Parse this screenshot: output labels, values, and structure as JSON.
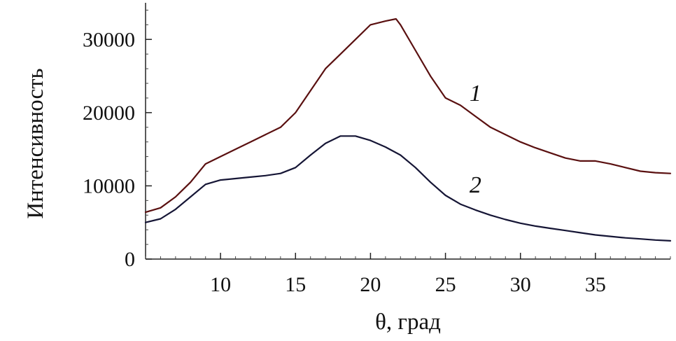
{
  "chart_data": {
    "type": "line",
    "xlabel": "θ, град",
    "ylabel": "Интенсивность",
    "xlim": [
      5,
      40
    ],
    "ylim": [
      0,
      35000
    ],
    "xticks": [
      10,
      15,
      20,
      25,
      30,
      35
    ],
    "yticks": [
      0,
      10000,
      20000,
      30000
    ],
    "grid": false,
    "legend": "inline labels",
    "series": [
      {
        "name": "1",
        "color": "#5a1010",
        "points": [
          [
            5,
            6400
          ],
          [
            6,
            7000
          ],
          [
            7,
            8500
          ],
          [
            8,
            10500
          ],
          [
            9,
            13000
          ],
          [
            10,
            14000
          ],
          [
            11,
            15000
          ],
          [
            12,
            16000
          ],
          [
            13,
            17000
          ],
          [
            14,
            18000
          ],
          [
            15,
            20000
          ],
          [
            16,
            23000
          ],
          [
            17,
            26000
          ],
          [
            18,
            28000
          ],
          [
            19,
            30000
          ],
          [
            20,
            32000
          ],
          [
            21,
            32500
          ],
          [
            21.7,
            32800
          ],
          [
            22,
            32000
          ],
          [
            23,
            28500
          ],
          [
            24,
            25000
          ],
          [
            25,
            22000
          ],
          [
            26,
            21000
          ],
          [
            27,
            19500
          ],
          [
            28,
            18000
          ],
          [
            29,
            17000
          ],
          [
            30,
            16000
          ],
          [
            31,
            15200
          ],
          [
            32,
            14500
          ],
          [
            33,
            13800
          ],
          [
            34,
            13400
          ],
          [
            35,
            13400
          ],
          [
            36,
            13000
          ],
          [
            37,
            12500
          ],
          [
            38,
            12000
          ],
          [
            39,
            11800
          ],
          [
            40,
            11700
          ]
        ]
      },
      {
        "name": "2",
        "color": "#151535",
        "points": [
          [
            5,
            5000
          ],
          [
            6,
            5500
          ],
          [
            7,
            6800
          ],
          [
            8,
            8500
          ],
          [
            9,
            10200
          ],
          [
            10,
            10800
          ],
          [
            11,
            11000
          ],
          [
            12,
            11200
          ],
          [
            13,
            11400
          ],
          [
            14,
            11700
          ],
          [
            15,
            12500
          ],
          [
            16,
            14200
          ],
          [
            17,
            15800
          ],
          [
            18,
            16800
          ],
          [
            19,
            16800
          ],
          [
            20,
            16200
          ],
          [
            21,
            15300
          ],
          [
            22,
            14200
          ],
          [
            23,
            12500
          ],
          [
            24,
            10500
          ],
          [
            25,
            8700
          ],
          [
            26,
            7500
          ],
          [
            27,
            6700
          ],
          [
            28,
            6000
          ],
          [
            29,
            5400
          ],
          [
            30,
            4900
          ],
          [
            31,
            4500
          ],
          [
            32,
            4200
          ],
          [
            33,
            3900
          ],
          [
            34,
            3600
          ],
          [
            35,
            3300
          ],
          [
            36,
            3100
          ],
          [
            37,
            2900
          ],
          [
            38,
            2750
          ],
          [
            39,
            2600
          ],
          [
            40,
            2500
          ]
        ]
      }
    ],
    "annotations": [
      {
        "text": "1",
        "x": 27,
        "y": 21600
      },
      {
        "text": "2",
        "x": 27,
        "y": 9100
      }
    ]
  }
}
